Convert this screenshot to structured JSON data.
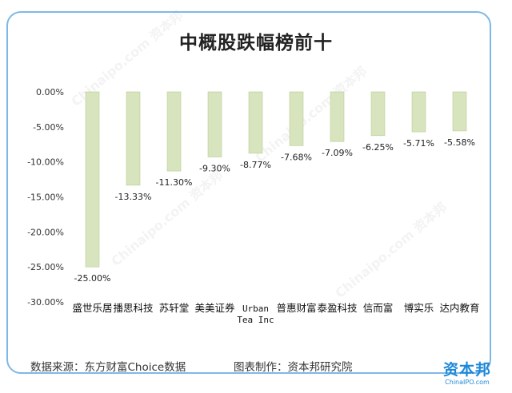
{
  "chart_data": {
    "type": "bar",
    "title": "中概股跌幅榜前十",
    "categories": [
      [
        "盛世乐居"
      ],
      [
        "播思科技"
      ],
      [
        "苏轩堂"
      ],
      [
        "美美证券"
      ],
      [
        "Urban",
        "Tea Inc"
      ],
      [
        "普惠财富"
      ],
      [
        "泰盈科技"
      ],
      [
        "信而富"
      ],
      [
        "博实乐"
      ],
      [
        "达内教育"
      ]
    ],
    "values": [
      -25.0,
      -13.33,
      -11.3,
      -9.3,
      -8.77,
      -7.68,
      -7.09,
      -6.25,
      -5.71,
      -5.58
    ],
    "value_labels": [
      "-25.00%",
      "-13.33%",
      "-11.30%",
      "-9.30%",
      "-8.77%",
      "-7.68%",
      "-7.09%",
      "-6.25%",
      "-5.71%",
      "-5.58%"
    ],
    "y_ticks": [
      0,
      -5,
      -10,
      -15,
      -20,
      -25,
      -30
    ],
    "y_tick_labels": [
      "0.00%",
      "-5.00%",
      "-10.00%",
      "-15.00%",
      "-20.00%",
      "-25.00%",
      "-30.00%"
    ],
    "ylim": [
      -30,
      0
    ],
    "grid": false,
    "bar_color": "#d7e4bd",
    "bar_stroke": "#b9cc95"
  },
  "footer": {
    "source": "数据来源：东方财富Choice数据",
    "made_by": "图表制作：资本邦研究院"
  },
  "logo": {
    "main": "资本邦",
    "sub": "ChinaIPO.com"
  },
  "colors": {
    "border": "#7fb8e6",
    "brand": "#1e88d8"
  }
}
